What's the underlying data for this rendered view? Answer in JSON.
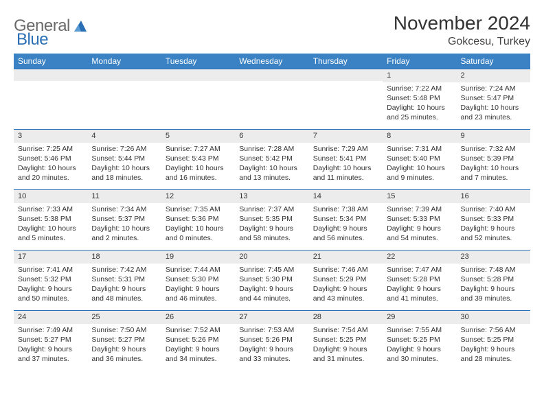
{
  "logo": {
    "general": "General",
    "blue": "Blue"
  },
  "header": {
    "month_title": "November 2024",
    "location": "Gokcesu, Turkey"
  },
  "colors": {
    "header_bg": "#3b82c4",
    "header_text": "#ffffff",
    "border": "#2a6fb5",
    "daynum_bg": "#ececec",
    "text": "#333333",
    "logo_gray": "#6b6b6b",
    "logo_blue": "#2a6fb5"
  },
  "calendar": {
    "weekdays": [
      "Sunday",
      "Monday",
      "Tuesday",
      "Wednesday",
      "Thursday",
      "Friday",
      "Saturday"
    ],
    "weeks": [
      [
        {
          "blank": true
        },
        {
          "blank": true
        },
        {
          "blank": true
        },
        {
          "blank": true
        },
        {
          "blank": true
        },
        {
          "day": "1",
          "sunrise": "Sunrise: 7:22 AM",
          "sunset": "Sunset: 5:48 PM",
          "daylight1": "Daylight: 10 hours",
          "daylight2": "and 25 minutes."
        },
        {
          "day": "2",
          "sunrise": "Sunrise: 7:24 AM",
          "sunset": "Sunset: 5:47 PM",
          "daylight1": "Daylight: 10 hours",
          "daylight2": "and 23 minutes."
        }
      ],
      [
        {
          "day": "3",
          "sunrise": "Sunrise: 7:25 AM",
          "sunset": "Sunset: 5:46 PM",
          "daylight1": "Daylight: 10 hours",
          "daylight2": "and 20 minutes."
        },
        {
          "day": "4",
          "sunrise": "Sunrise: 7:26 AM",
          "sunset": "Sunset: 5:44 PM",
          "daylight1": "Daylight: 10 hours",
          "daylight2": "and 18 minutes."
        },
        {
          "day": "5",
          "sunrise": "Sunrise: 7:27 AM",
          "sunset": "Sunset: 5:43 PM",
          "daylight1": "Daylight: 10 hours",
          "daylight2": "and 16 minutes."
        },
        {
          "day": "6",
          "sunrise": "Sunrise: 7:28 AM",
          "sunset": "Sunset: 5:42 PM",
          "daylight1": "Daylight: 10 hours",
          "daylight2": "and 13 minutes."
        },
        {
          "day": "7",
          "sunrise": "Sunrise: 7:29 AM",
          "sunset": "Sunset: 5:41 PM",
          "daylight1": "Daylight: 10 hours",
          "daylight2": "and 11 minutes."
        },
        {
          "day": "8",
          "sunrise": "Sunrise: 7:31 AM",
          "sunset": "Sunset: 5:40 PM",
          "daylight1": "Daylight: 10 hours",
          "daylight2": "and 9 minutes."
        },
        {
          "day": "9",
          "sunrise": "Sunrise: 7:32 AM",
          "sunset": "Sunset: 5:39 PM",
          "daylight1": "Daylight: 10 hours",
          "daylight2": "and 7 minutes."
        }
      ],
      [
        {
          "day": "10",
          "sunrise": "Sunrise: 7:33 AM",
          "sunset": "Sunset: 5:38 PM",
          "daylight1": "Daylight: 10 hours",
          "daylight2": "and 5 minutes."
        },
        {
          "day": "11",
          "sunrise": "Sunrise: 7:34 AM",
          "sunset": "Sunset: 5:37 PM",
          "daylight1": "Daylight: 10 hours",
          "daylight2": "and 2 minutes."
        },
        {
          "day": "12",
          "sunrise": "Sunrise: 7:35 AM",
          "sunset": "Sunset: 5:36 PM",
          "daylight1": "Daylight: 10 hours",
          "daylight2": "and 0 minutes."
        },
        {
          "day": "13",
          "sunrise": "Sunrise: 7:37 AM",
          "sunset": "Sunset: 5:35 PM",
          "daylight1": "Daylight: 9 hours",
          "daylight2": "and 58 minutes."
        },
        {
          "day": "14",
          "sunrise": "Sunrise: 7:38 AM",
          "sunset": "Sunset: 5:34 PM",
          "daylight1": "Daylight: 9 hours",
          "daylight2": "and 56 minutes."
        },
        {
          "day": "15",
          "sunrise": "Sunrise: 7:39 AM",
          "sunset": "Sunset: 5:33 PM",
          "daylight1": "Daylight: 9 hours",
          "daylight2": "and 54 minutes."
        },
        {
          "day": "16",
          "sunrise": "Sunrise: 7:40 AM",
          "sunset": "Sunset: 5:33 PM",
          "daylight1": "Daylight: 9 hours",
          "daylight2": "and 52 minutes."
        }
      ],
      [
        {
          "day": "17",
          "sunrise": "Sunrise: 7:41 AM",
          "sunset": "Sunset: 5:32 PM",
          "daylight1": "Daylight: 9 hours",
          "daylight2": "and 50 minutes."
        },
        {
          "day": "18",
          "sunrise": "Sunrise: 7:42 AM",
          "sunset": "Sunset: 5:31 PM",
          "daylight1": "Daylight: 9 hours",
          "daylight2": "and 48 minutes."
        },
        {
          "day": "19",
          "sunrise": "Sunrise: 7:44 AM",
          "sunset": "Sunset: 5:30 PM",
          "daylight1": "Daylight: 9 hours",
          "daylight2": "and 46 minutes."
        },
        {
          "day": "20",
          "sunrise": "Sunrise: 7:45 AM",
          "sunset": "Sunset: 5:30 PM",
          "daylight1": "Daylight: 9 hours",
          "daylight2": "and 44 minutes."
        },
        {
          "day": "21",
          "sunrise": "Sunrise: 7:46 AM",
          "sunset": "Sunset: 5:29 PM",
          "daylight1": "Daylight: 9 hours",
          "daylight2": "and 43 minutes."
        },
        {
          "day": "22",
          "sunrise": "Sunrise: 7:47 AM",
          "sunset": "Sunset: 5:28 PM",
          "daylight1": "Daylight: 9 hours",
          "daylight2": "and 41 minutes."
        },
        {
          "day": "23",
          "sunrise": "Sunrise: 7:48 AM",
          "sunset": "Sunset: 5:28 PM",
          "daylight1": "Daylight: 9 hours",
          "daylight2": "and 39 minutes."
        }
      ],
      [
        {
          "day": "24",
          "sunrise": "Sunrise: 7:49 AM",
          "sunset": "Sunset: 5:27 PM",
          "daylight1": "Daylight: 9 hours",
          "daylight2": "and 37 minutes."
        },
        {
          "day": "25",
          "sunrise": "Sunrise: 7:50 AM",
          "sunset": "Sunset: 5:27 PM",
          "daylight1": "Daylight: 9 hours",
          "daylight2": "and 36 minutes."
        },
        {
          "day": "26",
          "sunrise": "Sunrise: 7:52 AM",
          "sunset": "Sunset: 5:26 PM",
          "daylight1": "Daylight: 9 hours",
          "daylight2": "and 34 minutes."
        },
        {
          "day": "27",
          "sunrise": "Sunrise: 7:53 AM",
          "sunset": "Sunset: 5:26 PM",
          "daylight1": "Daylight: 9 hours",
          "daylight2": "and 33 minutes."
        },
        {
          "day": "28",
          "sunrise": "Sunrise: 7:54 AM",
          "sunset": "Sunset: 5:25 PM",
          "daylight1": "Daylight: 9 hours",
          "daylight2": "and 31 minutes."
        },
        {
          "day": "29",
          "sunrise": "Sunrise: 7:55 AM",
          "sunset": "Sunset: 5:25 PM",
          "daylight1": "Daylight: 9 hours",
          "daylight2": "and 30 minutes."
        },
        {
          "day": "30",
          "sunrise": "Sunrise: 7:56 AM",
          "sunset": "Sunset: 5:25 PM",
          "daylight1": "Daylight: 9 hours",
          "daylight2": "and 28 minutes."
        }
      ]
    ]
  }
}
